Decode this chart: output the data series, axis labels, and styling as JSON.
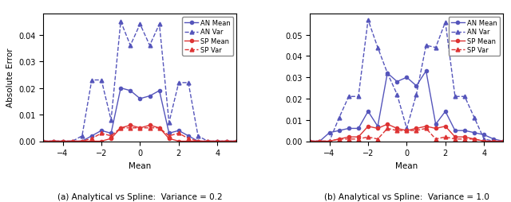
{
  "blue_color": "#5555bb",
  "red_color": "#dd3333",
  "x_ticks": [
    -4,
    -2,
    0,
    2,
    4
  ],
  "xlabel": "Mean",
  "ylabel": "Absolute Error",
  "subplot_labels": [
    "(a) Analytical vs Spline:  Variance = 0.2",
    "(b) Analytical vs Spline:  Variance = 1.0"
  ],
  "legend_entries": [
    "AN Mean",
    "AN Var",
    "SP Mean",
    "SP Var"
  ],
  "plot1": {
    "xlim": [
      -5,
      5
    ],
    "ylim": [
      0,
      0.048
    ],
    "yticks": [
      0.0,
      0.01,
      0.02,
      0.03,
      0.04
    ],
    "an_mean_x": [
      -5.0,
      -4.5,
      -4.0,
      -3.5,
      -3.0,
      -2.5,
      -2.0,
      -1.5,
      -1.0,
      -0.5,
      0.0,
      0.5,
      1.0,
      1.5,
      2.0,
      2.5,
      3.0,
      3.5,
      4.0,
      4.5,
      5.0
    ],
    "an_mean_y": [
      0.0,
      0.0,
      0.0,
      0.0,
      0.0,
      0.002,
      0.004,
      0.003,
      0.02,
      0.019,
      0.016,
      0.017,
      0.019,
      0.003,
      0.004,
      0.002,
      0.0,
      0.0,
      0.0,
      0.0,
      0.0
    ],
    "an_var_x": [
      -5.0,
      -4.5,
      -4.0,
      -3.5,
      -3.0,
      -2.5,
      -2.0,
      -1.5,
      -1.0,
      -0.5,
      0.0,
      0.5,
      1.0,
      1.5,
      2.0,
      2.5,
      3.0,
      3.5,
      4.0,
      4.5,
      5.0
    ],
    "an_var_y": [
      0.0,
      0.0,
      0.0,
      0.0,
      0.002,
      0.023,
      0.023,
      0.008,
      0.045,
      0.036,
      0.044,
      0.036,
      0.044,
      0.007,
      0.022,
      0.022,
      0.002,
      0.0,
      0.0,
      0.0,
      0.0
    ],
    "sp_mean_x": [
      -5.0,
      -4.5,
      -4.0,
      -3.5,
      -3.0,
      -2.5,
      -2.0,
      -1.5,
      -1.0,
      -0.5,
      0.0,
      0.5,
      1.0,
      1.5,
      2.0,
      2.5,
      3.0,
      3.5,
      4.0,
      4.5,
      5.0
    ],
    "sp_mean_y": [
      0.0,
      0.0,
      0.0,
      0.0,
      0.0,
      0.0,
      0.0,
      0.001,
      0.005,
      0.006,
      0.005,
      0.006,
      0.005,
      0.001,
      0.0,
      0.0,
      0.0,
      0.0,
      0.0,
      0.0,
      0.0
    ],
    "sp_var_x": [
      -5.0,
      -4.5,
      -4.0,
      -3.5,
      -3.0,
      -2.5,
      -2.0,
      -1.5,
      -1.0,
      -0.5,
      0.0,
      0.5,
      1.0,
      1.5,
      2.0,
      2.5,
      3.0,
      3.5,
      4.0,
      4.5,
      5.0
    ],
    "sp_var_y": [
      0.0,
      0.0,
      0.0,
      0.0,
      0.0,
      0.001,
      0.003,
      0.002,
      0.005,
      0.005,
      0.005,
      0.005,
      0.005,
      0.002,
      0.003,
      0.001,
      0.0,
      0.0,
      0.0,
      0.0,
      0.0
    ]
  },
  "plot2": {
    "xlim": [
      -5,
      5
    ],
    "ylim": [
      0,
      0.06
    ],
    "yticks": [
      0.0,
      0.01,
      0.02,
      0.03,
      0.04,
      0.05
    ],
    "an_mean_x": [
      -5.0,
      -4.5,
      -4.0,
      -3.5,
      -3.0,
      -2.5,
      -2.0,
      -1.5,
      -1.0,
      -0.5,
      0.0,
      0.5,
      1.0,
      1.5,
      2.0,
      2.5,
      3.0,
      3.5,
      4.0,
      4.5,
      5.0
    ],
    "an_mean_y": [
      0.0,
      0.0,
      0.004,
      0.005,
      0.006,
      0.006,
      0.014,
      0.007,
      0.032,
      0.028,
      0.03,
      0.026,
      0.033,
      0.008,
      0.014,
      0.005,
      0.005,
      0.004,
      0.003,
      0.001,
      0.0
    ],
    "an_var_x": [
      -5.0,
      -4.5,
      -4.0,
      -3.5,
      -3.0,
      -2.5,
      -2.0,
      -1.5,
      -1.0,
      -0.5,
      0.0,
      0.5,
      1.0,
      1.5,
      2.0,
      2.5,
      3.0,
      3.5,
      4.0,
      4.5,
      5.0
    ],
    "an_var_y": [
      0.0,
      0.0,
      0.0,
      0.011,
      0.021,
      0.021,
      0.057,
      0.044,
      0.032,
      0.022,
      0.006,
      0.022,
      0.045,
      0.044,
      0.056,
      0.021,
      0.021,
      0.011,
      0.001,
      0.0,
      0.0
    ],
    "sp_mean_x": [
      -5.0,
      -4.5,
      -4.0,
      -3.5,
      -3.0,
      -2.5,
      -2.0,
      -1.5,
      -1.0,
      -0.5,
      0.0,
      0.5,
      1.0,
      1.5,
      2.0,
      2.5,
      3.0,
      3.5,
      4.0,
      4.5,
      5.0
    ],
    "sp_mean_y": [
      0.0,
      0.0,
      0.0,
      0.001,
      0.002,
      0.002,
      0.007,
      0.006,
      0.008,
      0.006,
      0.005,
      0.006,
      0.007,
      0.006,
      0.007,
      0.002,
      0.002,
      0.001,
      0.0,
      0.0,
      0.0
    ],
    "sp_var_x": [
      -5.0,
      -4.5,
      -4.0,
      -3.5,
      -3.0,
      -2.5,
      -2.0,
      -1.5,
      -1.0,
      -0.5,
      0.0,
      0.5,
      1.0,
      1.5,
      2.0,
      2.5,
      3.0,
      3.5,
      4.0,
      4.5,
      5.0
    ],
    "sp_var_y": [
      0.0,
      0.0,
      0.0,
      0.001,
      0.001,
      0.001,
      0.002,
      0.001,
      0.006,
      0.005,
      0.005,
      0.005,
      0.006,
      0.001,
      0.002,
      0.001,
      0.001,
      0.001,
      0.0,
      0.0,
      0.0
    ]
  }
}
